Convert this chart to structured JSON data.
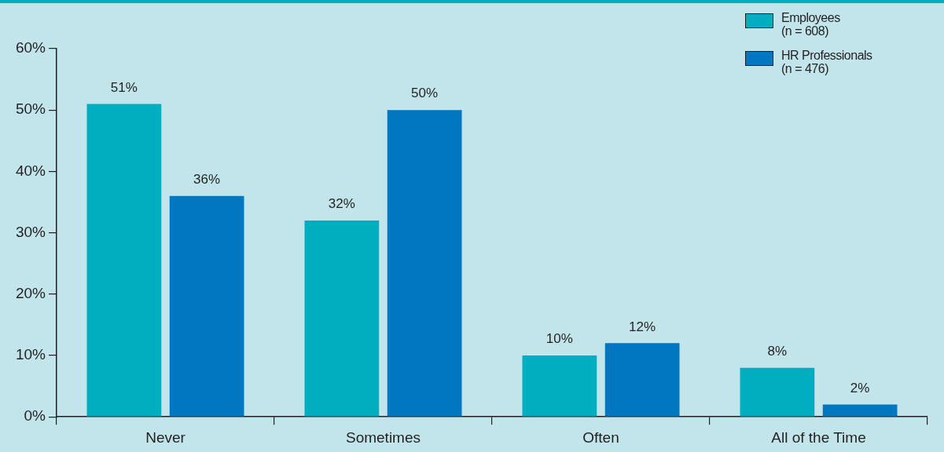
{
  "chart_data": {
    "type": "bar",
    "categories": [
      "Never",
      "Sometimes",
      "Often",
      "All of the Time"
    ],
    "series": [
      {
        "name": "Employees (n = 608)",
        "color": "#00aec0",
        "values": [
          51,
          32,
          10,
          8
        ],
        "value_labels": [
          "51%",
          "32%",
          "10%",
          "8%"
        ]
      },
      {
        "name": "HR Professionals (n = 476)",
        "color": "#0077c0",
        "values": [
          36,
          50,
          12,
          2
        ],
        "value_labels": [
          "36%",
          "50%",
          "12%",
          "2%"
        ]
      }
    ],
    "ylim": [
      0,
      60
    ],
    "yticks": [
      {
        "value": 0,
        "label": "0%"
      },
      {
        "value": 10,
        "label": "10%"
      },
      {
        "value": 20,
        "label": "20%"
      },
      {
        "value": 30,
        "label": "30%"
      },
      {
        "value": 40,
        "label": "40%"
      },
      {
        "value": 50,
        "label": "50%"
      },
      {
        "value": 60,
        "label": "60%"
      }
    ],
    "legend": "top right",
    "grid": false
  }
}
